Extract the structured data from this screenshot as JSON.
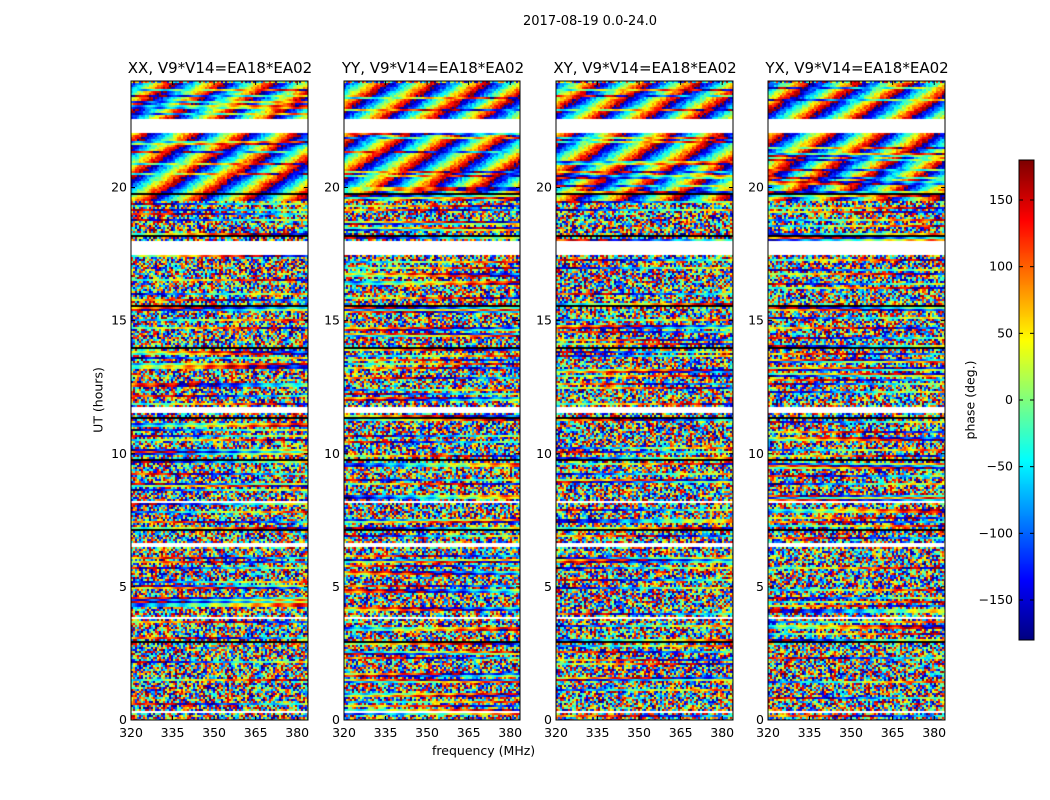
{
  "chart_data": {
    "type": "heatmap",
    "title": "2017-08-19 0.0-24.0",
    "xlabel": "frequency (MHz)",
    "ylabel": "UT (hours)",
    "xlim": [
      320,
      384
    ],
    "ylim": [
      0,
      24
    ],
    "xticks": [
      320,
      335,
      350,
      365,
      380
    ],
    "yticks": [
      0,
      5,
      10,
      15,
      20
    ],
    "panels": [
      {
        "title": "XX, V9*V14=EA18*EA02"
      },
      {
        "title": "YY, V9*V14=EA18*EA02"
      },
      {
        "title": "XY, V9*V14=EA18*EA02"
      },
      {
        "title": "YX, V9*V14=EA18*EA02"
      }
    ],
    "flagged_hours": [
      [
        22.1,
        22.6
      ],
      [
        17.5,
        18.0
      ],
      [
        11.6,
        11.8
      ],
      [
        8.2,
        8.3
      ],
      [
        6.5,
        6.7
      ],
      [
        3.8,
        3.9
      ],
      [
        0.3,
        0.35
      ]
    ],
    "colorbar": {
      "label": "phase (deg.)",
      "range": [
        -180,
        180
      ],
      "ticks": [
        150,
        100,
        50,
        0,
        -50,
        -100,
        -150
      ],
      "tick_labels": [
        "150",
        "100",
        "50",
        "0",
        "−50",
        "−100",
        "−150"
      ],
      "colormap": "jet"
    }
  }
}
